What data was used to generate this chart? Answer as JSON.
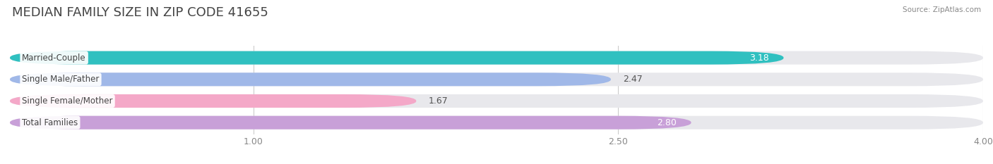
{
  "title": "MEDIAN FAMILY SIZE IN ZIP CODE 41655",
  "source": "Source: ZipAtlas.com",
  "categories": [
    "Married-Couple",
    "Single Male/Father",
    "Single Female/Mother",
    "Total Families"
  ],
  "values": [
    3.18,
    2.47,
    1.67,
    2.8
  ],
  "bar_colors": [
    "#30c0c0",
    "#a0b8e8",
    "#f4a8c8",
    "#c8a0d8"
  ],
  "value_colors": [
    "#ffffff",
    "#666666",
    "#666666",
    "#ffffff"
  ],
  "bg_color": "#ffffff",
  "bar_bg_color": "#e8e8ec",
  "xlim_start": 0.0,
  "xlim_end": 4.0,
  "xticks": [
    1.0,
    2.5,
    4.0
  ],
  "bar_height": 0.62,
  "bar_gap": 1.0,
  "title_fontsize": 13,
  "label_fontsize": 8.5,
  "value_fontsize": 9,
  "tick_fontsize": 9
}
